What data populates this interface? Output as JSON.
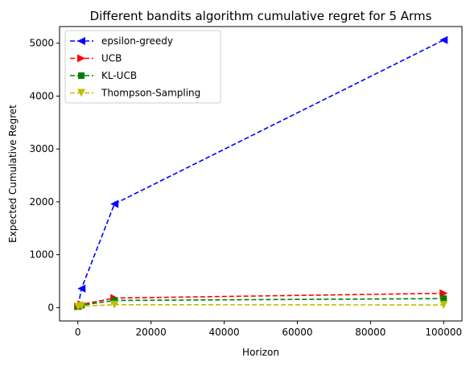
{
  "chart_data": {
    "type": "line",
    "title": "Different bandits algorithm cumulative regret for 5 Arms",
    "xlabel": "Horizon",
    "ylabel": "Expected Cumulative Regret",
    "xlim": [
      -5000,
      105000
    ],
    "ylim": [
      -253,
      5315
    ],
    "xticks": [
      0,
      20000,
      40000,
      60000,
      80000,
      100000
    ],
    "yticks": [
      0,
      1000,
      2000,
      3000,
      4000,
      5000
    ],
    "grid": false,
    "legend_position": "upper left",
    "x": [
      100,
      1000,
      10000,
      100000
    ],
    "series": [
      {
        "name": "epsilon-greedy",
        "color": "#0000ff",
        "marker": "triangle-left",
        "values": [
          35,
          360,
          1960,
          5060
        ]
      },
      {
        "name": "UCB",
        "color": "#ff0000",
        "marker": "triangle-right",
        "values": [
          22,
          60,
          180,
          270
        ]
      },
      {
        "name": "KL-UCB",
        "color": "#008000",
        "marker": "square",
        "values": [
          18,
          45,
          135,
          170
        ]
      },
      {
        "name": "Thompson-Sampling",
        "color": "#bfbf00",
        "marker": "triangle-down",
        "values": [
          14,
          28,
          55,
          50
        ]
      }
    ]
  }
}
